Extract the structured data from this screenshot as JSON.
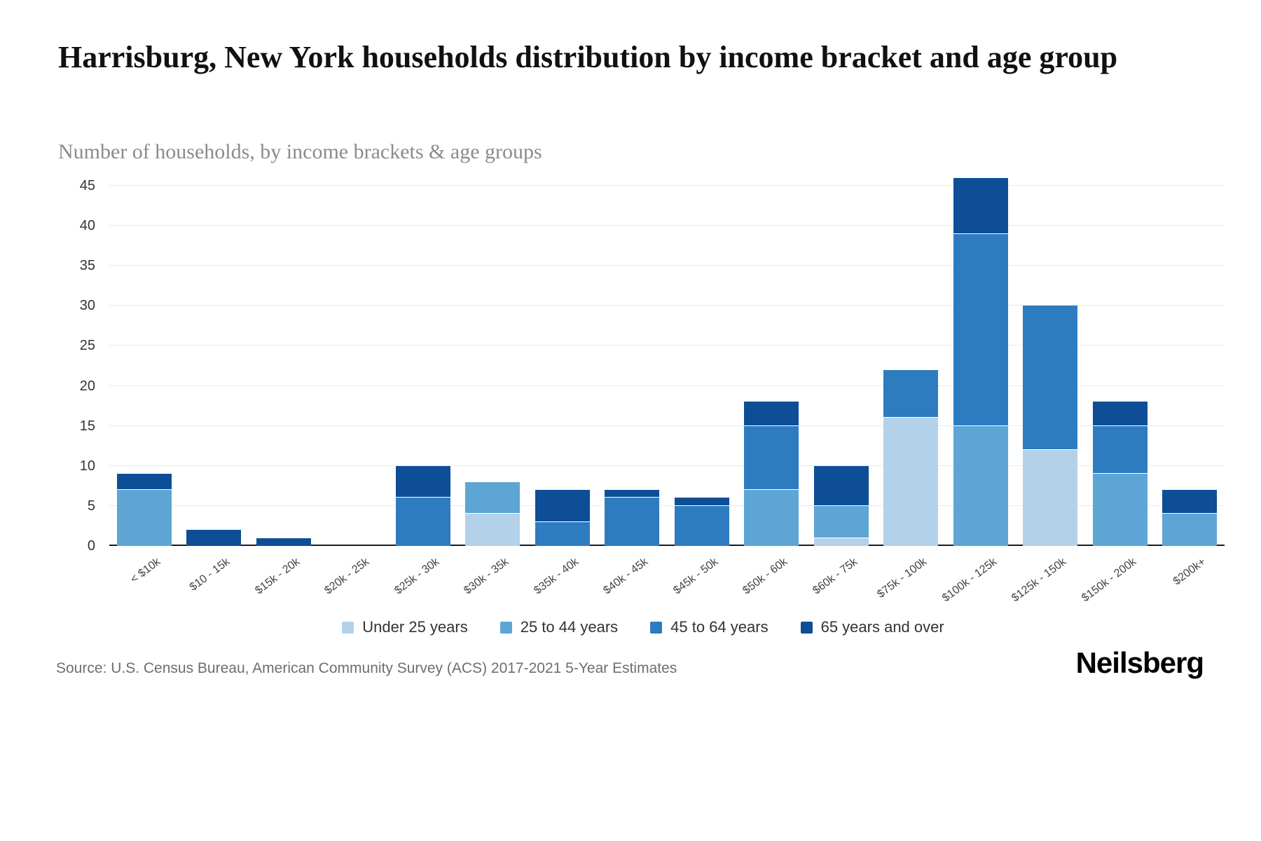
{
  "title": "Harrisburg, New York households distribution by income bracket and age group",
  "subtitle": "Number of households, by income brackets & age groups",
  "source": "Source: U.S. Census Bureau, American Community Survey (ACS) 2017-2021 5-Year Estimates",
  "brand": "Neilsberg",
  "colors": {
    "under_25": "#b3d2e9",
    "25_to_44": "#5da5d4",
    "45_to_64": "#2d7cbf",
    "65_and_over": "#0d4e96",
    "gridline": "#ebebeb",
    "axis_line": "#1a1a1a"
  },
  "chart_data": {
    "type": "bar",
    "stacked": true,
    "title": "Harrisburg, New York households distribution by income bracket and age group",
    "xlabel": "",
    "ylabel": "Number of households",
    "ylim": [
      0,
      45
    ],
    "yticks": [
      0,
      5,
      10,
      15,
      20,
      25,
      30,
      35,
      40,
      45
    ],
    "grid": true,
    "legend_position": "bottom",
    "categories": [
      "< $10k",
      "$10 - 15k",
      "$15k - 20k",
      "$20k - 25k",
      "$25k - 30k",
      "$30k - 35k",
      "$35k - 40k",
      "$40k - 45k",
      "$45k - 50k",
      "$50k - 60k",
      "$60k - 75k",
      "$75k - 100k",
      "$100k - 125k",
      "$125k - 150k",
      "$150k - 200k",
      "$200k+"
    ],
    "series": [
      {
        "name": "Under 25 years",
        "color": "#b3d2e9",
        "values": [
          0,
          0,
          0,
          0,
          0,
          4,
          0,
          0,
          0,
          0,
          1,
          16,
          0,
          12,
          0,
          0
        ]
      },
      {
        "name": "25 to 44 years",
        "color": "#5da5d4",
        "values": [
          7,
          0,
          0,
          0,
          0,
          4,
          0,
          0,
          0,
          7,
          4,
          0,
          15,
          0,
          9,
          4
        ]
      },
      {
        "name": "45 to 64 years",
        "color": "#2d7cbf",
        "values": [
          0,
          0,
          0,
          0,
          6,
          0,
          3,
          6,
          5,
          8,
          0,
          6,
          24,
          18,
          6,
          0
        ]
      },
      {
        "name": "65 years and over",
        "color": "#0d4e96",
        "values": [
          2,
          2,
          1,
          0,
          4,
          0,
          4,
          1,
          1,
          3,
          5,
          0,
          7,
          0,
          3,
          3
        ]
      }
    ],
    "totals": [
      9,
      2,
      1,
      0,
      10,
      8,
      7,
      7,
      6,
      18,
      10,
      22,
      46,
      30,
      18,
      7
    ]
  }
}
